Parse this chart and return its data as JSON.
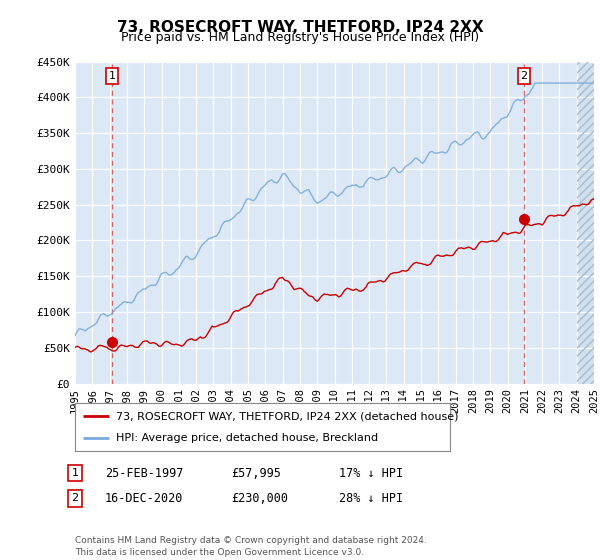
{
  "title": "73, ROSECROFT WAY, THETFORD, IP24 2XX",
  "subtitle": "Price paid vs. HM Land Registry's House Price Index (HPI)",
  "ylim": [
    0,
    450000
  ],
  "yticks": [
    0,
    50000,
    100000,
    150000,
    200000,
    250000,
    300000,
    350000,
    400000,
    450000
  ],
  "ytick_labels": [
    "£0",
    "£50K",
    "£100K",
    "£150K",
    "£200K",
    "£250K",
    "£300K",
    "£350K",
    "£400K",
    "£450K"
  ],
  "xtick_years": [
    1995,
    1996,
    1997,
    1998,
    1999,
    2000,
    2001,
    2002,
    2003,
    2004,
    2005,
    2006,
    2007,
    2008,
    2009,
    2010,
    2011,
    2012,
    2013,
    2014,
    2015,
    2016,
    2017,
    2018,
    2019,
    2020,
    2021,
    2022,
    2023,
    2024,
    2025
  ],
  "sale1_x": 1997.15,
  "sale1_y": 57995,
  "sale2_x": 2020.96,
  "sale2_y": 230000,
  "line_color_red": "#cc0000",
  "line_color_blue": "#7aaadd",
  "plot_bg_color": "#dce8f5",
  "grid_color": "#ffffff",
  "hatch_color": "#bbccdd",
  "legend_label_red": "73, ROSECROFT WAY, THETFORD, IP24 2XX (detached house)",
  "legend_label_blue": "HPI: Average price, detached house, Breckland",
  "sale1_date": "25-FEB-1997",
  "sale1_price": "£57,995",
  "sale1_hpi": "17% ↓ HPI",
  "sale2_date": "16-DEC-2020",
  "sale2_price": "£230,000",
  "sale2_hpi": "28% ↓ HPI",
  "footer": "Contains HM Land Registry data © Crown copyright and database right 2024.\nThis data is licensed under the Open Government Licence v3.0."
}
